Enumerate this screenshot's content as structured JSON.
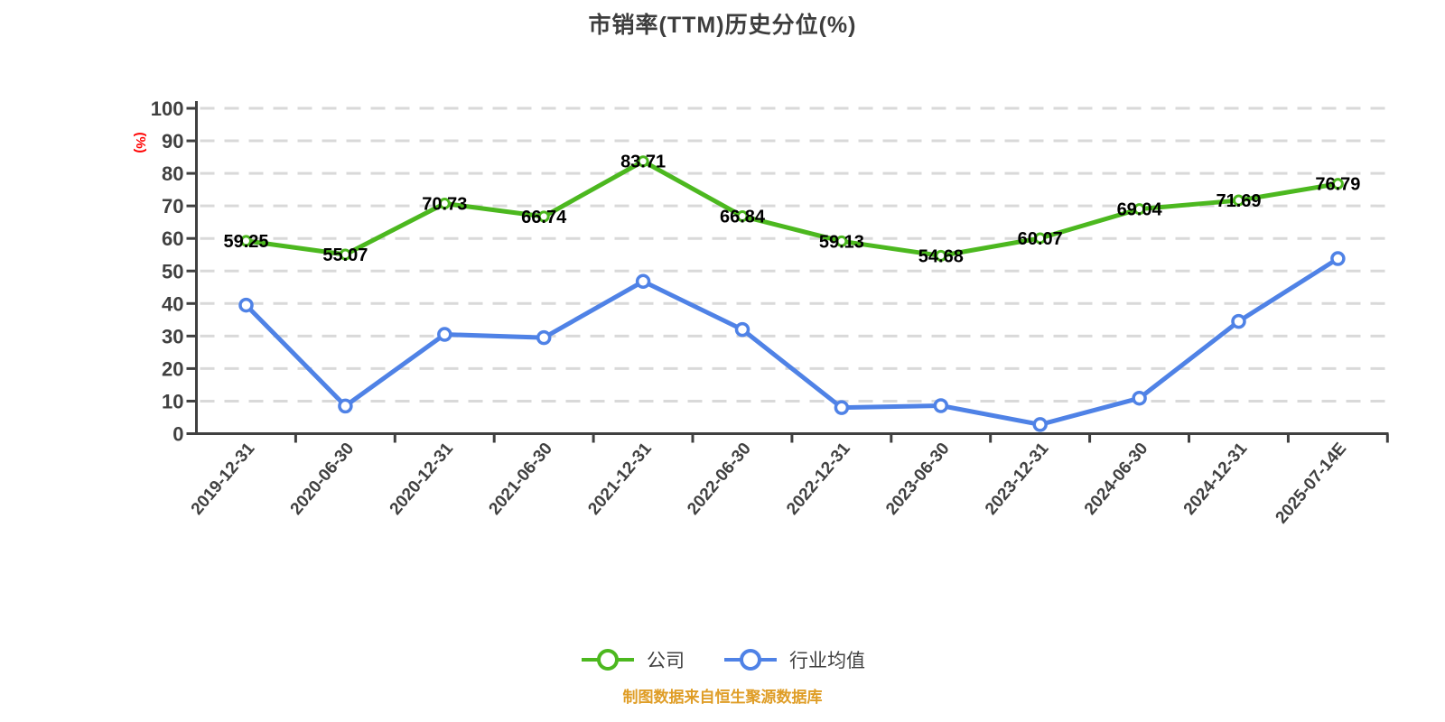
{
  "title": "市销率(TTM)历史分位(%)",
  "y_axis_unit_label": "(%)",
  "source_note": "制图数据来自恒生聚源数据库",
  "legend": [
    {
      "label": "公司",
      "color": "#4cb81f"
    },
    {
      "label": "行业均值",
      "color": "#4f82e6"
    }
  ],
  "colors": {
    "company_green": "#4cb81f",
    "industry_blue": "#4f82e6",
    "axis": "#404040",
    "grid": "#d9d9d9",
    "data_label": "#000000",
    "unit_red": "#ff0000",
    "source_orange": "#df9d26",
    "title_gray": "#3d3d3d",
    "marker_fill": "#ffffff"
  },
  "chart_data": {
    "type": "line",
    "title": "市销率(TTM)历史分位(%)",
    "ylabel": "(%)",
    "xlabel": "",
    "ylim": [
      0,
      100
    ],
    "y_ticks": [
      0,
      10,
      20,
      30,
      40,
      50,
      60,
      70,
      80,
      90,
      100
    ],
    "grid": "horizontal dashed",
    "legend_position": "bottom",
    "categories": [
      "2019-12-31",
      "2020-06-30",
      "2020-12-31",
      "2021-06-30",
      "2021-12-31",
      "2022-06-30",
      "2022-12-31",
      "2023-06-30",
      "2023-12-31",
      "2024-06-30",
      "2024-12-31",
      "2025-07-14E"
    ],
    "series": [
      {
        "name": "公司",
        "color": "#4cb81f",
        "values": [
          59.25,
          55.07,
          70.73,
          66.74,
          83.71,
          66.84,
          59.13,
          54.68,
          60.07,
          69.04,
          71.69,
          76.79
        ],
        "point_labels_shown": true
      },
      {
        "name": "行业均值",
        "color": "#4f82e6",
        "values": [
          39.5,
          8.5,
          30.5,
          29.5,
          46.8,
          32.0,
          8.0,
          8.6,
          2.8,
          10.9,
          34.5,
          53.8
        ],
        "point_labels_shown": false
      }
    ]
  }
}
